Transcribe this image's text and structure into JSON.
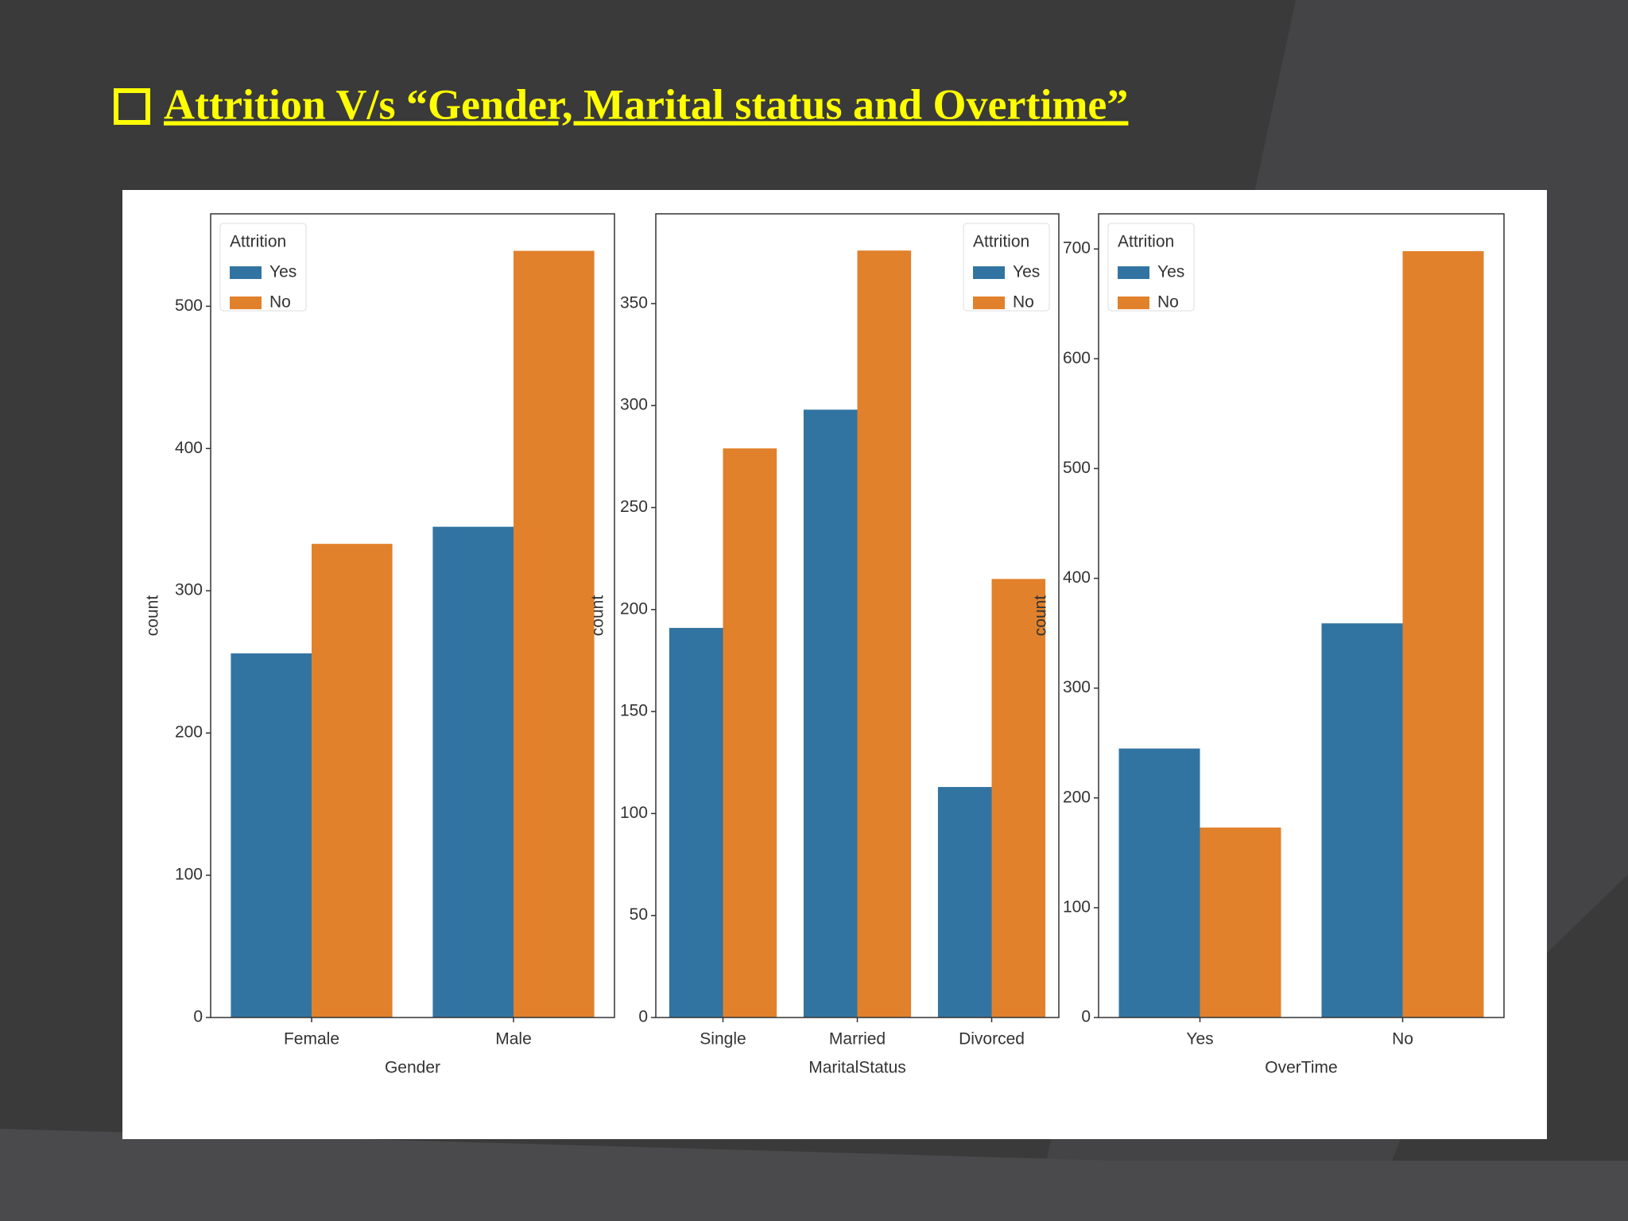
{
  "title": "Attrition V/s “Gender, Marital status and Overtime”",
  "chart_data": [
    {
      "type": "bar",
      "xlabel": "Gender",
      "ylabel": "count",
      "legend_title": "Attrition",
      "legend": "upper left",
      "categories": [
        "Female",
        "Male"
      ],
      "series": [
        {
          "name": "Yes",
          "color": "#3274a1",
          "values": [
            256,
            345
          ]
        },
        {
          "name": "No",
          "color": "#e1812c",
          "values": [
            333,
            539
          ]
        }
      ],
      "ylim": [
        0,
        565
      ],
      "yticks": [
        0,
        100,
        200,
        300,
        400,
        500
      ]
    },
    {
      "type": "bar",
      "xlabel": "MaritalStatus",
      "ylabel": "count",
      "legend_title": "Attrition",
      "legend": "upper right",
      "categories": [
        "Single",
        "Married",
        "Divorced"
      ],
      "series": [
        {
          "name": "Yes",
          "color": "#3274a1",
          "values": [
            191,
            298,
            113
          ]
        },
        {
          "name": "No",
          "color": "#e1812c",
          "values": [
            279,
            376,
            215
          ]
        }
      ],
      "ylim": [
        0,
        394
      ],
      "yticks": [
        0,
        50,
        100,
        150,
        200,
        250,
        300,
        350
      ]
    },
    {
      "type": "bar",
      "xlabel": "OverTime",
      "ylabel": "count",
      "legend_title": "Attrition",
      "legend": "upper left",
      "categories": [
        "Yes",
        "No"
      ],
      "series": [
        {
          "name": "Yes",
          "color": "#3274a1",
          "values": [
            245,
            359
          ]
        },
        {
          "name": "No",
          "color": "#e1812c",
          "values": [
            173,
            698
          ]
        }
      ],
      "ylim": [
        0,
        732
      ],
      "yticks": [
        0,
        100,
        200,
        300,
        400,
        500,
        600,
        700
      ]
    }
  ]
}
